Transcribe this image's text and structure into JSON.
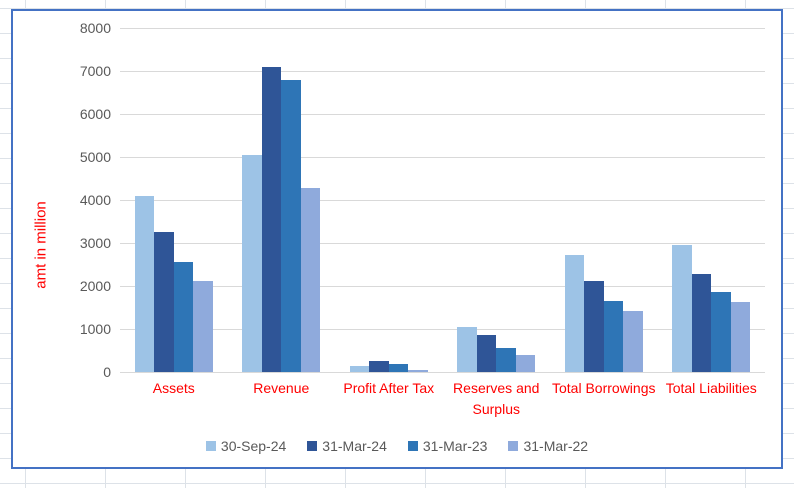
{
  "chart_data": {
    "type": "bar",
    "title": "",
    "ylabel": "amt in million",
    "xlabel": "",
    "ylim": [
      0,
      8000
    ],
    "ytick_step": 1000,
    "grid": "horizontal",
    "legend_position": "bottom",
    "categories": [
      "Assets",
      "Revenue",
      "Profit After Tax",
      "Reserves and Surplus",
      "Total Borrowings",
      "Total Liabilities"
    ],
    "series": [
      {
        "name": "30-Sep-24",
        "color": "#9DC3E6",
        "values": [
          4100,
          5050,
          150,
          1050,
          2730,
          2960
        ]
      },
      {
        "name": "31-Mar-24",
        "color": "#2F5597",
        "values": [
          3250,
          7100,
          260,
          860,
          2110,
          2280
        ]
      },
      {
        "name": "31-Mar-23",
        "color": "#2E75B6",
        "values": [
          2550,
          6790,
          180,
          570,
          1660,
          1870
        ]
      },
      {
        "name": "31-Mar-22",
        "color": "#8FAADC",
        "values": [
          2120,
          4290,
          40,
          390,
          1410,
          1620
        ]
      }
    ]
  },
  "styles": {
    "category_label_color": "#FF0000",
    "axis_title_color": "#FF0000",
    "tick_label_color": "#595959",
    "legend_label_color": "#595959",
    "gridline_color": "#d9d9d9",
    "chart_border_color": "#4472C4"
  }
}
